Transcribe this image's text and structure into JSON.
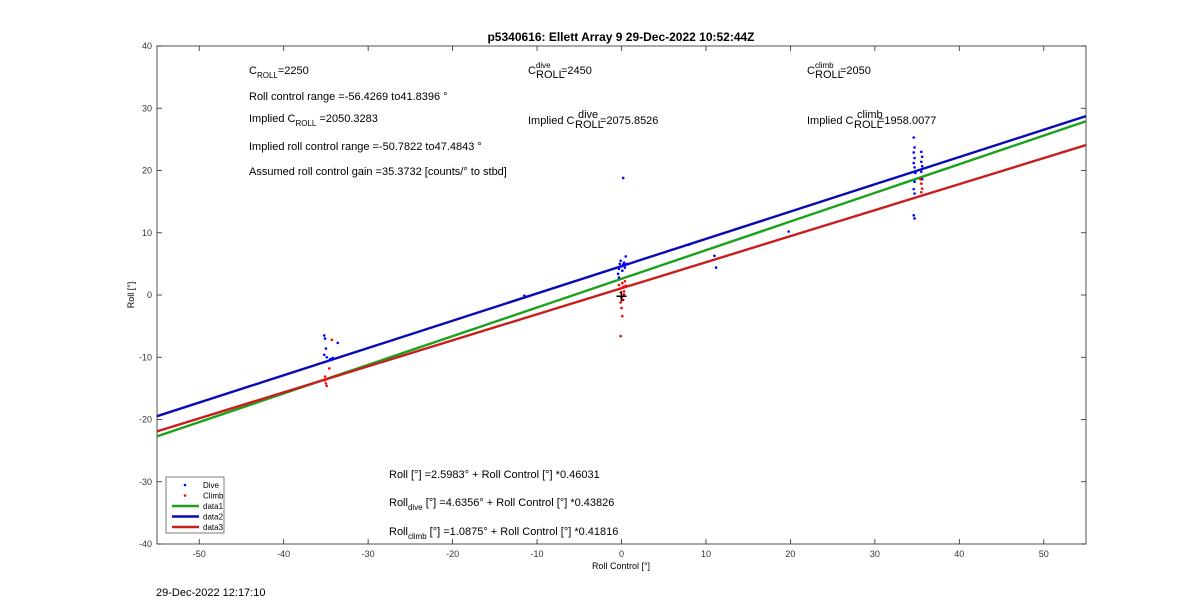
{
  "chart_data": {
    "type": "scatter",
    "title": "p5340616: Ellett Array 9 29-Dec-2022 10:52:44Z",
    "xlabel": "Roll Control [°]",
    "ylabel": "Roll [°]",
    "xlim": [
      -55,
      55
    ],
    "ylim": [
      -40,
      40
    ],
    "x_ticks": [
      -50,
      -40,
      -30,
      -20,
      -10,
      0,
      10,
      20,
      30,
      40,
      50
    ],
    "y_ticks": [
      40,
      30,
      20,
      10,
      0,
      -10,
      -20,
      -30,
      -40
    ],
    "grid": false,
    "legend_position": "bottom-left",
    "legend": [
      {
        "label": "Dive",
        "kind": "marker",
        "color": "#0000ff"
      },
      {
        "label": "Climb",
        "kind": "marker",
        "color": "#ff0000"
      },
      {
        "label": "data1",
        "kind": "line",
        "color": "#1aa31a"
      },
      {
        "label": "data2",
        "kind": "line",
        "color": "#0a0ab4"
      },
      {
        "label": "data3",
        "kind": "line",
        "color": "#c81e1e"
      }
    ],
    "series": [
      {
        "name": "data1",
        "type": "line",
        "color": "#1aa31a",
        "intercept": 2.5983,
        "slope": 0.46031
      },
      {
        "name": "data2",
        "type": "line",
        "color": "#0a0ab4",
        "intercept": 4.6356,
        "slope": 0.43826
      },
      {
        "name": "data3",
        "type": "line",
        "color": "#c81e1e",
        "intercept": 1.0875,
        "slope": 0.41816
      },
      {
        "name": "Dive",
        "type": "scatter",
        "color": "#0000ff",
        "points": [
          [
            -35.2,
            -6.5
          ],
          [
            -35.1,
            -7.0
          ],
          [
            -35.0,
            -8.6
          ],
          [
            -35.2,
            -9.6
          ],
          [
            -34.9,
            -10.0
          ],
          [
            -34.5,
            -10.3
          ],
          [
            -34.2,
            -10.1
          ],
          [
            -33.6,
            -7.7
          ],
          [
            -11.5,
            -0.1
          ],
          [
            -0.4,
            3.4
          ],
          [
            -0.3,
            4.2
          ],
          [
            -0.2,
            5.0
          ],
          [
            -0.1,
            5.5
          ],
          [
            0.0,
            4.6
          ],
          [
            0.1,
            3.9
          ],
          [
            0.2,
            4.9
          ],
          [
            0.3,
            5.2
          ],
          [
            0.4,
            4.4
          ],
          [
            -0.3,
            2.8
          ],
          [
            0.2,
            18.8
          ],
          [
            0.5,
            6.2
          ],
          [
            0.6,
            5.0
          ],
          [
            8.0,
            8.1
          ],
          [
            11.0,
            6.3
          ],
          [
            11.2,
            4.4
          ],
          [
            19.8,
            10.2
          ],
          [
            34.6,
            25.3
          ],
          [
            34.7,
            23.7
          ],
          [
            34.6,
            22.9
          ],
          [
            34.7,
            22.0
          ],
          [
            34.6,
            21.2
          ],
          [
            34.7,
            20.5
          ],
          [
            34.8,
            19.6
          ],
          [
            34.7,
            18.2
          ],
          [
            34.6,
            17.0
          ],
          [
            34.7,
            16.3
          ],
          [
            34.6,
            12.8
          ],
          [
            34.7,
            12.3
          ],
          [
            35.5,
            23.0
          ],
          [
            35.6,
            22.2
          ],
          [
            35.5,
            21.4
          ],
          [
            35.6,
            20.7
          ],
          [
            35.5,
            19.8
          ],
          [
            35.6,
            18.6
          ]
        ]
      },
      {
        "name": "Climb",
        "type": "scatter",
        "color": "#ff0000",
        "points": [
          [
            -35.1,
            -13.7
          ],
          [
            -35.0,
            -14.2
          ],
          [
            -34.9,
            -14.6
          ],
          [
            -35.1,
            -13.1
          ],
          [
            -34.6,
            -11.8
          ],
          [
            -34.3,
            -7.2
          ],
          [
            -0.3,
            1.6
          ],
          [
            -0.2,
            1.0
          ],
          [
            -0.1,
            0.4
          ],
          [
            0.0,
            -0.4
          ],
          [
            0.1,
            1.9
          ],
          [
            0.2,
            1.3
          ],
          [
            0.3,
            0.6
          ],
          [
            0.4,
            2.2
          ],
          [
            0.5,
            1.5
          ],
          [
            -0.1,
            -1.2
          ],
          [
            0.0,
            -2.1
          ],
          [
            0.1,
            -3.4
          ],
          [
            -0.1,
            -6.6
          ],
          [
            0.2,
            -0.8
          ],
          [
            0.3,
            0.1
          ],
          [
            35.4,
            18.6
          ],
          [
            35.5,
            17.9
          ],
          [
            35.6,
            17.1
          ],
          [
            35.5,
            16.5
          ]
        ]
      }
    ],
    "marker": {
      "label": "+",
      "x": 0.0,
      "y": -0.2
    }
  },
  "annotations": {
    "c_roll_base": "C",
    "c_roll_sub": "ROLL",
    "c_roll_val": "=2250",
    "c_dive_base": "C",
    "c_dive_sup": "dive",
    "c_dive_sub": "ROLL",
    "c_dive_val": "=2450",
    "c_climb_base": "C",
    "c_climb_sup": "climb",
    "c_climb_sub": "ROLL",
    "c_climb_val": "=2050",
    "roll_range": "Roll control range =-56.4269 to41.8396 °",
    "implied_pre": "Implied C",
    "implied_sub": "ROLL",
    "implied_val": " =2050.3283",
    "implied_dive_pre": "Implied C",
    "implied_dive_sup": "dive",
    "implied_dive_sub": "ROLL",
    "implied_dive_val": "=2075.8526",
    "implied_climb_pre": "Implied C",
    "implied_climb_sup": "climb",
    "implied_climb_sub": "ROLL",
    "implied_climb_val": "=1958.0077",
    "implied_range": "Implied roll control range =-50.7822 to47.4843 °",
    "gain": "Assumed roll control gain =35.3732 [counts/° to stbd]",
    "fit_all": "Roll [°] =2.5983° + Roll Control [°] *0.46031",
    "fit_dive_pre": "Roll",
    "fit_dive_sub": "dive",
    "fit_dive_post": " [°] =4.6356° + Roll Control [°] *0.43826",
    "fit_climb_pre": "Roll",
    "fit_climb_sub": "climb",
    "fit_climb_post": " [°] =1.0875° + Roll Control [°] *0.41816"
  },
  "footer": {
    "timestamp": "29-Dec-2022 12:17:10"
  }
}
